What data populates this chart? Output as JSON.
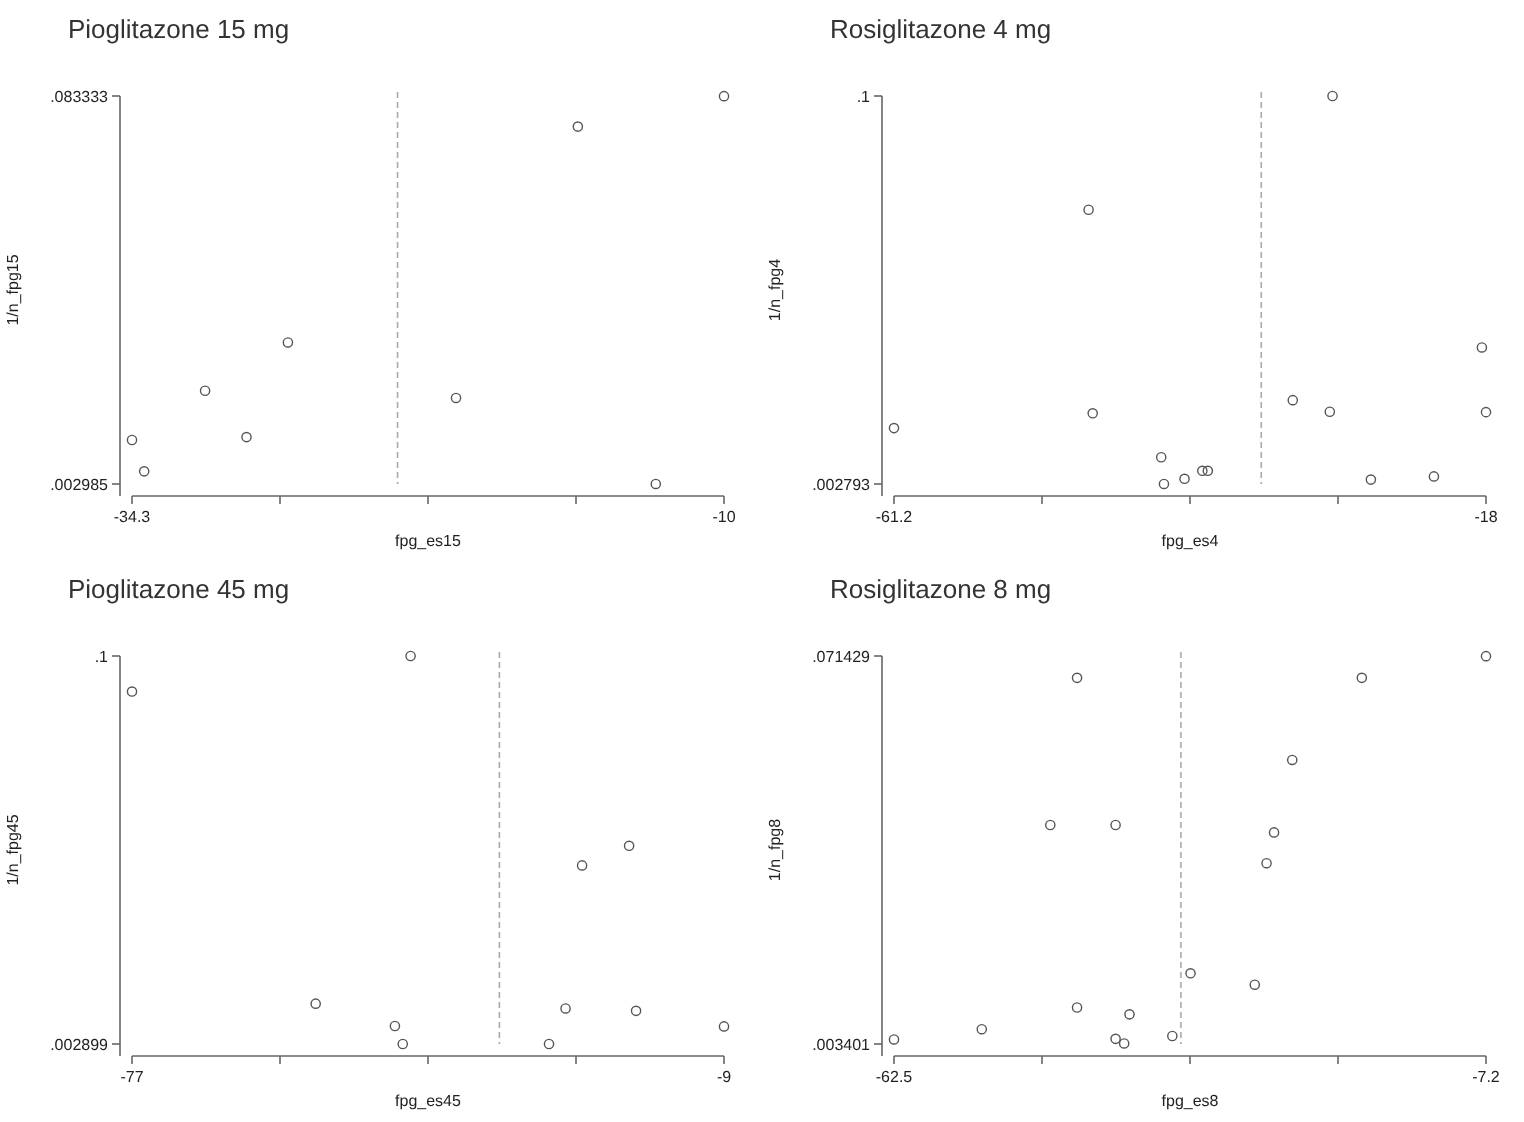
{
  "chart_data": [
    {
      "type": "scatter",
      "title": "Pioglitazone 15 mg",
      "xlabel": "fpg_es15",
      "ylabel": "1/n_fpg15",
      "marker": "circle",
      "xlim": [
        -34.3,
        -10
      ],
      "ylim": [
        0.002985,
        0.083333
      ],
      "xticks": [
        -34.3,
        {
          "value": -28.225,
          "label": null
        },
        {
          "value": -22.15,
          "label": null
        },
        {
          "value": -16.075,
          "label": null
        },
        -10
      ],
      "yticks": [
        {
          "value": 0.002985,
          "label": ".002985"
        },
        {
          "value": 0.083333,
          "label": ".083333"
        }
      ],
      "ref_lines": [
        {
          "axis": "x",
          "value": -23.4,
          "color": "#aaaaaa",
          "line_style": "dashed"
        }
      ],
      "series": [
        {
          "color": "#555555",
          "x": [
            -34.3,
            -33.8,
            -31.3,
            -29.6,
            -27.9,
            -21.0,
            -16.0,
            -12.8,
            -10
          ],
          "values": [
            0.0121,
            0.0056,
            0.0223,
            0.0127,
            0.0323,
            0.0208,
            0.077,
            0.003,
            0.0833
          ]
        }
      ]
    },
    {
      "type": "scatter",
      "title": "Rosiglitazone 4 mg",
      "xlabel": "fpg_es4",
      "ylabel": "1/n_fpg4",
      "marker": "circle",
      "xlim": [
        -61.2,
        -18
      ],
      "ylim": [
        0.002793,
        0.1
      ],
      "xticks": [
        -61.2,
        {
          "value": -50.4,
          "label": null
        },
        {
          "value": -39.6,
          "label": null
        },
        {
          "value": -28.8,
          "label": null
        },
        -18
      ],
      "yticks": [
        {
          "value": 0.002793,
          "label": ".002793"
        },
        {
          "value": 0.1,
          "label": ".1"
        }
      ],
      "ref_lines": [
        {
          "axis": "x",
          "value": -34.4,
          "color": "#aaaaaa",
          "line_style": "dashed"
        }
      ],
      "series": [
        {
          "color": "#555555",
          "x": [
            -61.2,
            -47.0,
            -46.7,
            -41.7,
            -41.5,
            -40.0,
            -38.7,
            -38.3,
            -32.1,
            -29.4,
            -29.2,
            -26.4,
            -21.8,
            -18.3,
            -18
          ],
          "values": [
            0.0168,
            0.0715,
            0.0205,
            0.0095,
            0.0028,
            0.0041,
            0.0061,
            0.0061,
            0.0238,
            0.0209,
            0.1,
            0.0039,
            0.0047,
            0.037,
            0.0208
          ]
        }
      ]
    },
    {
      "type": "scatter",
      "title": "Pioglitazone 45 mg",
      "xlabel": "fpg_es45",
      "ylabel": "1/n_fpg45",
      "marker": "circle",
      "xlim": [
        -77,
        -9
      ],
      "ylim": [
        0.002899,
        0.1
      ],
      "xticks": [
        -77,
        {
          "value": -60,
          "label": null
        },
        {
          "value": -43,
          "label": null
        },
        {
          "value": -26,
          "label": null
        },
        -9
      ],
      "yticks": [
        {
          "value": 0.002899,
          "label": ".002899"
        },
        {
          "value": 0.1,
          "label": ".1"
        }
      ],
      "ref_lines": [
        {
          "axis": "x",
          "value": -34.8,
          "color": "#aaaaaa",
          "line_style": "dashed"
        }
      ],
      "series": [
        {
          "color": "#555555",
          "x": [
            -77,
            -55.9,
            -46.8,
            -45.9,
            -45.0,
            -29.1,
            -27.2,
            -25.3,
            -19.9,
            -19.1,
            -9
          ],
          "values": [
            0.0911,
            0.013,
            0.0074,
            0.0029,
            0.1,
            0.0029,
            0.0118,
            0.0476,
            0.0525,
            0.0112,
            0.0073
          ]
        }
      ]
    },
    {
      "type": "scatter",
      "title": "Rosiglitazone 8 mg",
      "xlabel": "fpg_es8",
      "ylabel": "1/n_fpg8",
      "marker": "circle",
      "xlim": [
        -62.5,
        -7.2
      ],
      "ylim": [
        0.003401,
        0.071429
      ],
      "xticks": [
        -62.5,
        {
          "value": -48.675,
          "label": null
        },
        {
          "value": -34.85,
          "label": null
        },
        {
          "value": -21.025,
          "label": null
        },
        -7.2
      ],
      "yticks": [
        {
          "value": 0.003401,
          "label": ".003401"
        },
        {
          "value": 0.071429,
          "label": ".071429"
        }
      ],
      "ref_lines": [
        {
          "axis": "x",
          "value": -35.7,
          "color": "#aaaaaa",
          "line_style": "dashed"
        }
      ],
      "series": [
        {
          "color": "#555555",
          "x": [
            -62.5,
            -54.3,
            -47.9,
            -45.4,
            -45.4,
            -41.8,
            -41.8,
            -41.0,
            -40.5,
            -36.5,
            -34.8,
            -28.8,
            -27.7,
            -27.0,
            -25.3,
            -18.8,
            -7.2
          ],
          "values": [
            0.0042,
            0.006,
            0.0418,
            0.0676,
            0.0098,
            0.0418,
            0.0043,
            0.0035,
            0.0086,
            0.0048,
            0.0158,
            0.0138,
            0.0351,
            0.0405,
            0.0532,
            0.0676,
            0.0714
          ]
        }
      ]
    }
  ]
}
